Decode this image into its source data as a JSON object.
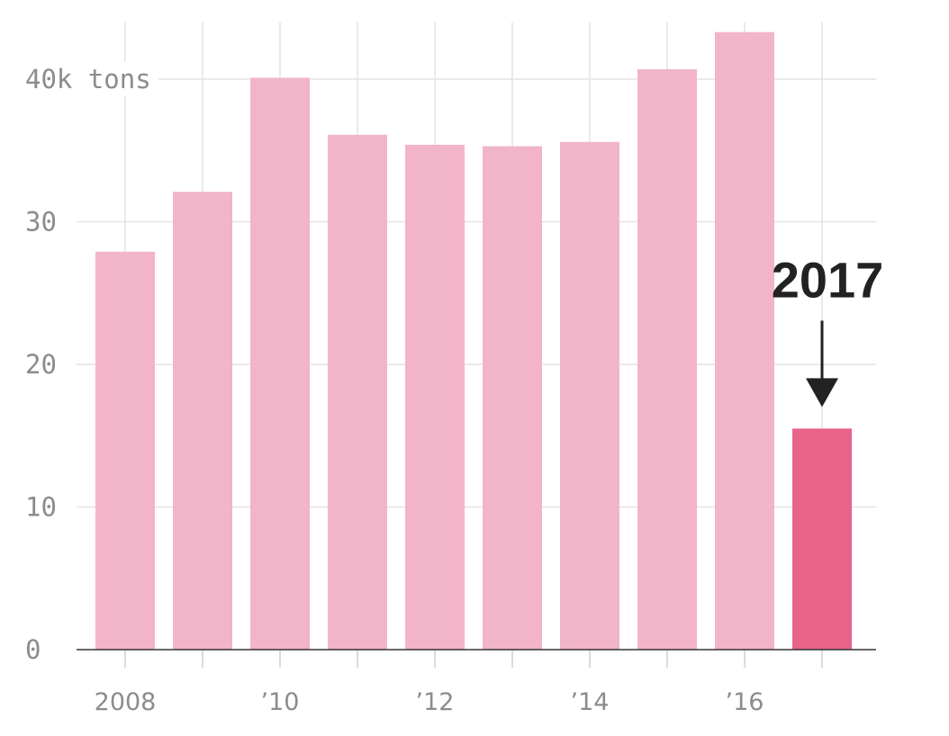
{
  "chart_data": {
    "type": "bar",
    "categories": [
      "2008",
      "2009",
      "2010",
      "2011",
      "2012",
      "2013",
      "2014",
      "2015",
      "2016",
      "2017"
    ],
    "values": [
      27.9,
      32.1,
      40.1,
      36.1,
      35.4,
      35.3,
      35.6,
      40.7,
      43.3,
      15.5
    ],
    "highlight_index": 9,
    "ylim": [
      0,
      44
    ],
    "y_ticks": [
      0,
      10,
      20,
      30,
      40
    ],
    "y_tick_labels": [
      "0",
      "10",
      "20",
      "30",
      "40k tons"
    ],
    "x_tick_labels": [
      "2008",
      "",
      "’10",
      "",
      "’12",
      "",
      "’14",
      "",
      "’16",
      ""
    ],
    "grid": true,
    "colors": {
      "bar": "#f2b4c8",
      "highlight": "#e8638a"
    },
    "annotation": {
      "label": "2017",
      "target_index": 9
    }
  }
}
